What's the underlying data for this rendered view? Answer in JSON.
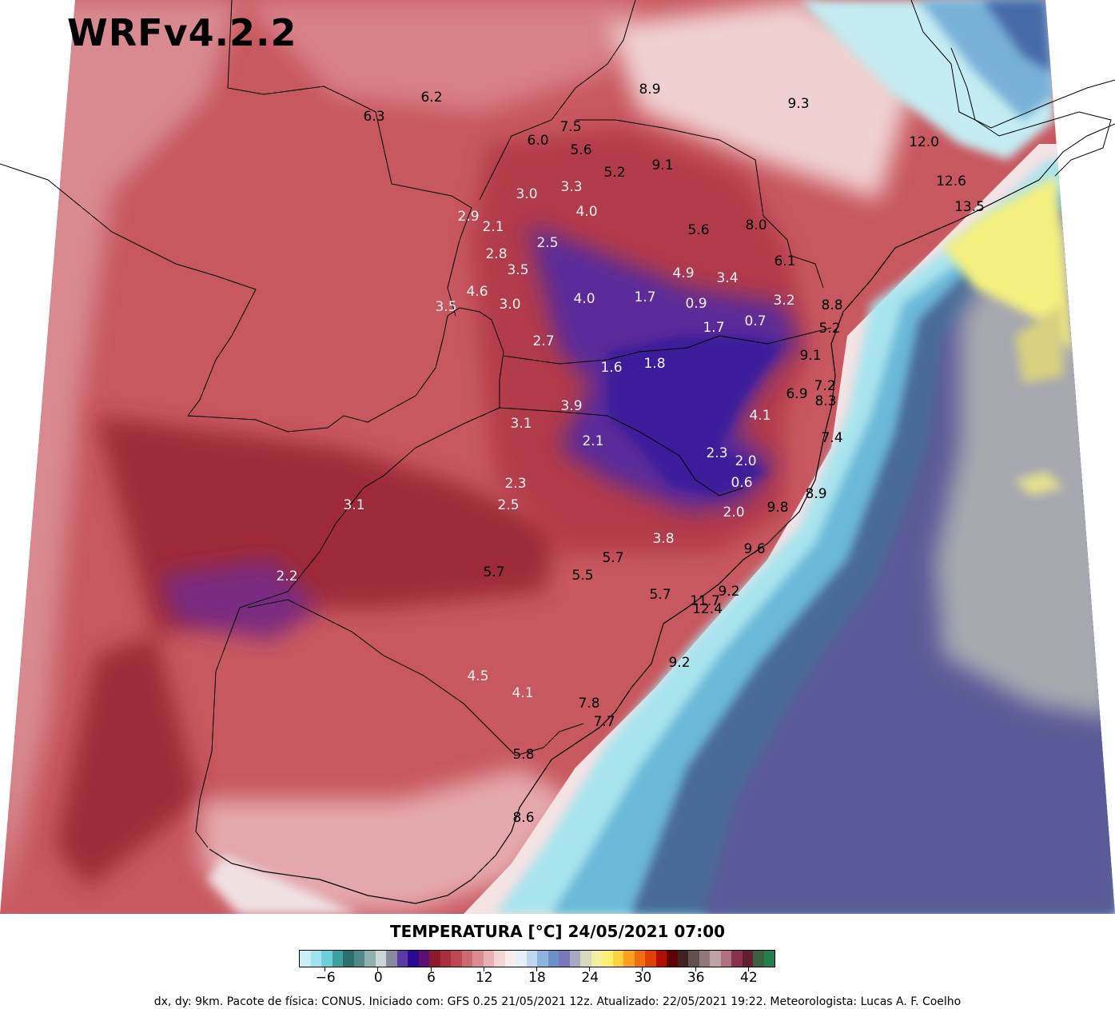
{
  "model_title": "WRFv4.2.2",
  "colorbar": {
    "title": "TEMPERATURA [°C] 24/05/2021 07:00",
    "ticks": [
      "−6",
      "0",
      "6",
      "12",
      "18",
      "24",
      "30",
      "36",
      "42"
    ],
    "tick_values": [
      -6,
      0,
      6,
      12,
      18,
      24,
      30,
      36,
      42
    ],
    "range": [
      -9,
      45
    ],
    "colors": [
      "#c8f0f4",
      "#9ee4ec",
      "#6ccfd6",
      "#3e9fa0",
      "#2c6e6c",
      "#4f8a88",
      "#8fb0ae",
      "#c9d6d6",
      "#8a8aa0",
      "#5a3aa8",
      "#2a0a90",
      "#5a1070",
      "#8c1a2c",
      "#a8303c",
      "#bd4a52",
      "#cc6a70",
      "#db8c90",
      "#e8b0b2",
      "#f2d4d4",
      "#f8ecec",
      "#e6eef8",
      "#c0d6ee",
      "#8cb4de",
      "#6e90c8",
      "#7a78b8",
      "#a8a8c0",
      "#d8d8c0",
      "#f0f0a0",
      "#fff070",
      "#ffd040",
      "#ffa020",
      "#f07010",
      "#e04000",
      "#b01000",
      "#600000",
      "#402020",
      "#605050",
      "#907878",
      "#c0a0a0",
      "#b07080",
      "#8a3050",
      "#602030",
      "#3a6040",
      "#208050"
    ]
  },
  "footer": "dx, dy: 9km. Pacote de física: CONUS. Iniciado com: GFS 0.25 21/05/2021 12z. Atualizado: 22/05/2021 19:22. Meteorologista: Lucas A. F. Coelho",
  "colors": {
    "land_warm": "#c0454c",
    "land_cold": "#3a1a9a",
    "ocean_warm": "#4a5088",
    "ocean_grey": "#a8a8b0",
    "coast_cyan": "#90d8e8"
  },
  "station_values": [
    {
      "text": "6.2",
      "tone": "dark"
    },
    {
      "text": "6.3",
      "tone": "dark"
    },
    {
      "text": "8.9",
      "tone": "dark"
    },
    {
      "text": "9.3",
      "tone": "dark"
    },
    {
      "text": "7.5",
      "tone": "dark"
    },
    {
      "text": "6.0",
      "tone": "dark"
    },
    {
      "text": "5.6",
      "tone": "dark"
    },
    {
      "text": "5.2",
      "tone": "dark"
    },
    {
      "text": "9.1",
      "tone": "dark"
    },
    {
      "text": "12.0",
      "tone": "dark"
    },
    {
      "text": "12.6",
      "tone": "dark"
    },
    {
      "text": "13.5",
      "tone": "dark"
    },
    {
      "text": "3.0",
      "tone": "light"
    },
    {
      "text": "3.3",
      "tone": "light"
    },
    {
      "text": "4.0",
      "tone": "light"
    },
    {
      "text": "2.9",
      "tone": "light"
    },
    {
      "text": "2.1",
      "tone": "light"
    },
    {
      "text": "2.5",
      "tone": "light"
    },
    {
      "text": "5.6",
      "tone": "dark"
    },
    {
      "text": "8.0",
      "tone": "dark"
    },
    {
      "text": "2.8",
      "tone": "light"
    },
    {
      "text": "3.5",
      "tone": "light"
    },
    {
      "text": "6.1",
      "tone": "dark"
    },
    {
      "text": "4.9",
      "tone": "light"
    },
    {
      "text": "3.4",
      "tone": "light"
    },
    {
      "text": "4.6",
      "tone": "light"
    },
    {
      "text": "3.5",
      "tone": "light"
    },
    {
      "text": "3.0",
      "tone": "light"
    },
    {
      "text": "4.0",
      "tone": "light"
    },
    {
      "text": "1.7",
      "tone": "light"
    },
    {
      "text": "0.9",
      "tone": "light"
    },
    {
      "text": "3.2",
      "tone": "light"
    },
    {
      "text": "8.8",
      "tone": "dark"
    },
    {
      "text": "1.7",
      "tone": "light"
    },
    {
      "text": "0.7",
      "tone": "light"
    },
    {
      "text": "5.2",
      "tone": "dark"
    },
    {
      "text": "2.7",
      "tone": "light"
    },
    {
      "text": "9.1",
      "tone": "dark"
    },
    {
      "text": "1.6",
      "tone": "light"
    },
    {
      "text": "1.8",
      "tone": "light"
    },
    {
      "text": "7.2",
      "tone": "dark"
    },
    {
      "text": "6.9",
      "tone": "dark"
    },
    {
      "text": "8.3",
      "tone": "dark"
    },
    {
      "text": "3.9",
      "tone": "light"
    },
    {
      "text": "4.1",
      "tone": "light"
    },
    {
      "text": "3.1",
      "tone": "light"
    },
    {
      "text": "2.1",
      "tone": "light"
    },
    {
      "text": "7.4",
      "tone": "dark"
    },
    {
      "text": "2.3",
      "tone": "light"
    },
    {
      "text": "2.0",
      "tone": "light"
    },
    {
      "text": "2.3",
      "tone": "light"
    },
    {
      "text": "0.6",
      "tone": "light"
    },
    {
      "text": "3.1",
      "tone": "light"
    },
    {
      "text": "2.5",
      "tone": "light"
    },
    {
      "text": "8.9",
      "tone": "dark"
    },
    {
      "text": "2.0",
      "tone": "light"
    },
    {
      "text": "9.8",
      "tone": "dark"
    },
    {
      "text": "3.8",
      "tone": "light"
    },
    {
      "text": "9.6",
      "tone": "dark"
    },
    {
      "text": "5.7",
      "tone": "dark"
    },
    {
      "text": "2.2",
      "tone": "light"
    },
    {
      "text": "5.7",
      "tone": "dark"
    },
    {
      "text": "5.5",
      "tone": "dark"
    },
    {
      "text": "9.2",
      "tone": "dark"
    },
    {
      "text": "5.7",
      "tone": "dark"
    },
    {
      "text": "11.7",
      "tone": "dark"
    },
    {
      "text": "12.4",
      "tone": "dark"
    },
    {
      "text": "9.2",
      "tone": "dark"
    },
    {
      "text": "4.5",
      "tone": "light"
    },
    {
      "text": "4.1",
      "tone": "light"
    },
    {
      "text": "7.8",
      "tone": "dark"
    },
    {
      "text": "7.7",
      "tone": "dark"
    },
    {
      "text": "5.8",
      "tone": "dark"
    },
    {
      "text": "8.6",
      "tone": "dark"
    }
  ]
}
